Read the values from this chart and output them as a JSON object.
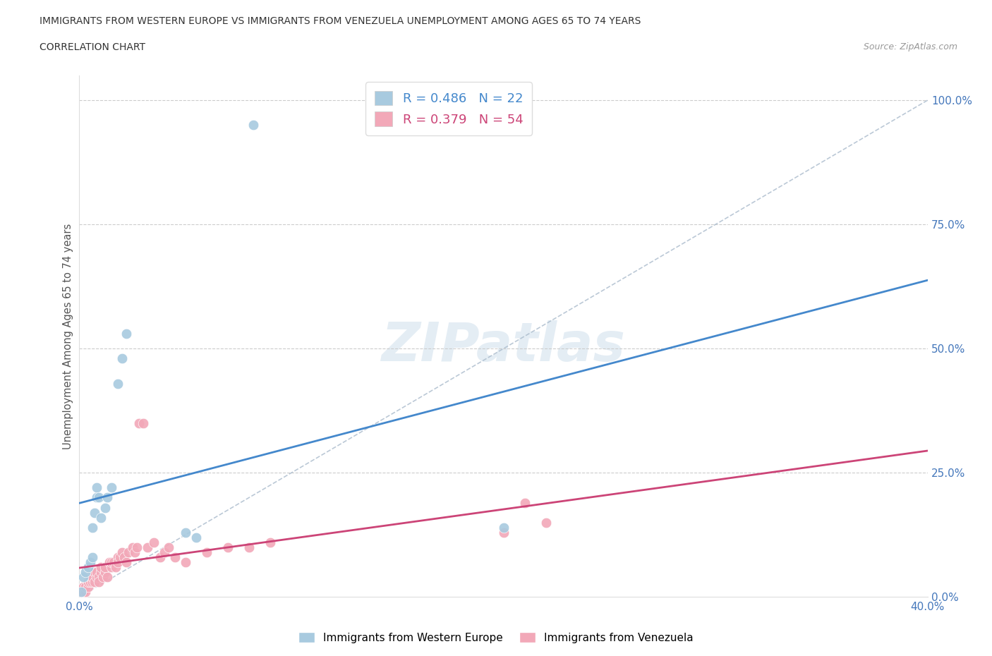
{
  "title_line1": "IMMIGRANTS FROM WESTERN EUROPE VS IMMIGRANTS FROM VENEZUELA UNEMPLOYMENT AMONG AGES 65 TO 74 YEARS",
  "title_line2": "CORRELATION CHART",
  "source": "Source: ZipAtlas.com",
  "ylabel": "Unemployment Among Ages 65 to 74 years",
  "xlim": [
    0.0,
    0.4
  ],
  "ylim": [
    0.0,
    1.0
  ],
  "blue_R": 0.486,
  "blue_N": 22,
  "pink_R": 0.379,
  "pink_N": 54,
  "blue_color": "#A8CADF",
  "pink_color": "#F2A8B8",
  "blue_line_color": "#4488CC",
  "pink_line_color": "#CC4477",
  "diag_line_color": "#AABBCC",
  "legend_label_blue": "Immigrants from Western Europe",
  "legend_label_pink": "Immigrants from Venezuela",
  "watermark": "ZIPatlas",
  "blue_scatter_x": [
    0.001,
    0.002,
    0.003,
    0.004,
    0.005,
    0.006,
    0.006,
    0.007,
    0.008,
    0.008,
    0.009,
    0.01,
    0.012,
    0.013,
    0.015,
    0.018,
    0.02,
    0.022,
    0.05,
    0.055,
    0.2,
    0.082
  ],
  "blue_scatter_y": [
    0.01,
    0.04,
    0.05,
    0.06,
    0.07,
    0.08,
    0.14,
    0.17,
    0.2,
    0.22,
    0.2,
    0.16,
    0.18,
    0.2,
    0.22,
    0.43,
    0.48,
    0.53,
    0.13,
    0.12,
    0.14,
    0.95
  ],
  "pink_scatter_x": [
    0.001,
    0.002,
    0.002,
    0.003,
    0.003,
    0.004,
    0.004,
    0.005,
    0.005,
    0.006,
    0.006,
    0.007,
    0.007,
    0.008,
    0.008,
    0.009,
    0.009,
    0.01,
    0.01,
    0.011,
    0.012,
    0.012,
    0.013,
    0.014,
    0.015,
    0.015,
    0.016,
    0.017,
    0.018,
    0.018,
    0.019,
    0.02,
    0.021,
    0.022,
    0.023,
    0.025,
    0.026,
    0.027,
    0.028,
    0.03,
    0.032,
    0.035,
    0.038,
    0.04,
    0.042,
    0.045,
    0.05,
    0.06,
    0.07,
    0.08,
    0.09,
    0.2,
    0.21,
    0.22
  ],
  "pink_scatter_y": [
    0.01,
    0.01,
    0.02,
    0.01,
    0.02,
    0.02,
    0.03,
    0.03,
    0.04,
    0.03,
    0.04,
    0.03,
    0.05,
    0.04,
    0.05,
    0.04,
    0.03,
    0.05,
    0.06,
    0.04,
    0.05,
    0.06,
    0.04,
    0.07,
    0.06,
    0.07,
    0.07,
    0.06,
    0.08,
    0.07,
    0.08,
    0.09,
    0.08,
    0.07,
    0.09,
    0.1,
    0.09,
    0.1,
    0.35,
    0.35,
    0.1,
    0.11,
    0.08,
    0.09,
    0.1,
    0.08,
    0.07,
    0.09,
    0.1,
    0.1,
    0.11,
    0.13,
    0.19,
    0.15
  ]
}
